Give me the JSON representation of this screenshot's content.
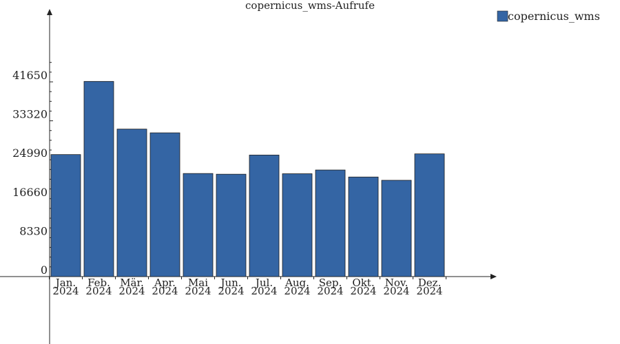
{
  "chart_data": {
    "type": "bar",
    "title": "copernicus_wms-Aufrufe",
    "categories": [
      [
        "Jan.",
        "2024"
      ],
      [
        "Feb.",
        "2024"
      ],
      [
        "Mär.",
        "2024"
      ],
      [
        "Apr.",
        "2024"
      ],
      [
        "Mai",
        "2024"
      ],
      [
        "Jun.",
        "2024"
      ],
      [
        "Jul.",
        "2024"
      ],
      [
        "Aug.",
        "2024"
      ],
      [
        "Sep.",
        "2024"
      ],
      [
        "Okt.",
        "2024"
      ],
      [
        "Nov.",
        "2024"
      ],
      [
        "Dez.",
        "2024"
      ]
    ],
    "series": [
      {
        "name": "copernicus_wms",
        "color": "#3465a4",
        "values": [
          26100,
          41750,
          31550,
          30750,
          22050,
          21900,
          26000,
          22000,
          22800,
          21300,
          20600,
          26250
        ]
      }
    ],
    "y_ticks": [
      0,
      8330,
      16660,
      24990,
      33320,
      41650
    ],
    "ylim": [
      0,
      55000
    ],
    "xlabel": "",
    "ylabel": "",
    "grid": false,
    "legend_position": "top-right"
  }
}
